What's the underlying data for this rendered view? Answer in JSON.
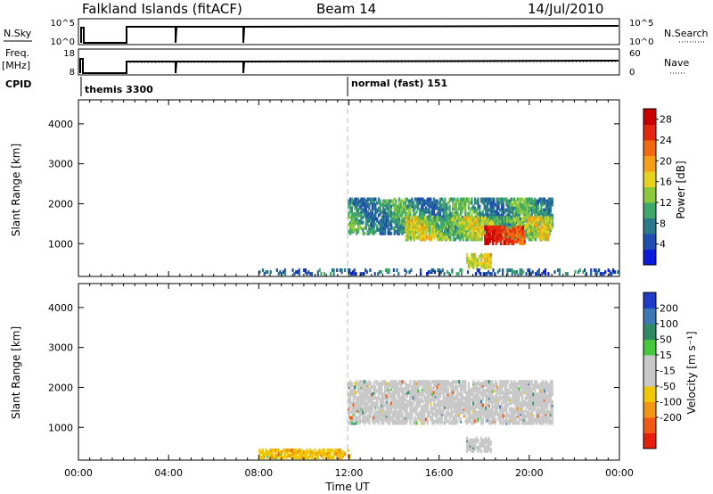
{
  "header": {
    "title": "Falkland Islands (fitACF)",
    "beam": "Beam 14",
    "date": "14/Jul/2010"
  },
  "sky_panel": {
    "left_label": "N.Sky",
    "right_label": "N.Search",
    "left_ticks": [
      "10^5",
      "10^0"
    ],
    "right_ticks": [
      "10^5",
      "10^0"
    ]
  },
  "freq_panel": {
    "left_label_line1": "Freq.",
    "left_label_line2": "[MHz]",
    "right_label": "Nave",
    "left_ticks": [
      "18",
      "8"
    ],
    "right_ticks": [
      "60",
      "0"
    ]
  },
  "cpid": {
    "label": "CPID",
    "programs": [
      {
        "name": "themis 3300",
        "start_hour": 0.0
      },
      {
        "name": "normal (fast) 151",
        "start_hour": 12.0
      }
    ]
  },
  "chart_data": [
    {
      "type": "heatmap",
      "quantity": "Power",
      "ylabel": "Slant Range [km]",
      "xlabel": "",
      "xlim_hours": [
        0,
        24
      ],
      "ylim_km": [
        180,
        4600
      ],
      "yticks": [
        1000,
        2000,
        3000,
        4000
      ],
      "colorbar": {
        "label": "Power [dB]",
        "ticks": [
          4,
          8,
          12,
          16,
          20,
          24,
          28
        ],
        "range": [
          0,
          30
        ],
        "colors": [
          "#0a1cd9",
          "#1e4fb0",
          "#2a7a8c",
          "#3ea86a",
          "#8cc83c",
          "#e6d21e",
          "#f5a014",
          "#ef6a10",
          "#e2280e",
          "#c80000"
        ]
      },
      "regions": [
        {
          "t0": 11.95,
          "t1": 21.0,
          "r0": 1300,
          "r1": 2200,
          "mean": 9
        },
        {
          "t0": 14.5,
          "t1": 21.0,
          "r0": 1150,
          "r1": 1700,
          "mean": 14
        },
        {
          "t0": 18.0,
          "t1": 19.8,
          "r0": 1050,
          "r1": 1500,
          "mean": 26
        },
        {
          "t0": 17.2,
          "t1": 18.3,
          "r0": 450,
          "r1": 800,
          "mean": 18
        },
        {
          "t0": 8.0,
          "t1": 24.0,
          "r0": 200,
          "r1": 420,
          "mean": 6
        }
      ]
    },
    {
      "type": "heatmap",
      "quantity": "Velocity",
      "ylabel": "Slant Range [km]",
      "xlabel": "Time UT",
      "xticks": [
        "00:00",
        "04:00",
        "08:00",
        "12:00",
        "16:00",
        "20:00",
        "00:00"
      ],
      "xlim_hours": [
        0,
        24
      ],
      "ylim_km": [
        180,
        4600
      ],
      "yticks": [
        1000,
        2000,
        3000,
        4000
      ],
      "colorbar": {
        "label": "Velocity [m s⁻¹]",
        "ticks": [
          200,
          100,
          50,
          15,
          -15,
          -50,
          -100,
          -200
        ],
        "colors": [
          "#1e3cc8",
          "#3c78b4",
          "#2e8a64",
          "#46c83c",
          "#c8c8c8",
          "#c8c8c8",
          "#f0c800",
          "#f09614",
          "#f05a14",
          "#e61e0a"
        ]
      },
      "regions": [
        {
          "t0": 11.95,
          "t1": 21.0,
          "r0": 1150,
          "r1": 2200,
          "mean": 0
        },
        {
          "t0": 17.2,
          "t1": 18.3,
          "r0": 450,
          "r1": 800,
          "mean": 0
        },
        {
          "t0": 8.0,
          "t1": 12.0,
          "r0": 200,
          "r1": 500,
          "mean": -40
        }
      ]
    }
  ]
}
